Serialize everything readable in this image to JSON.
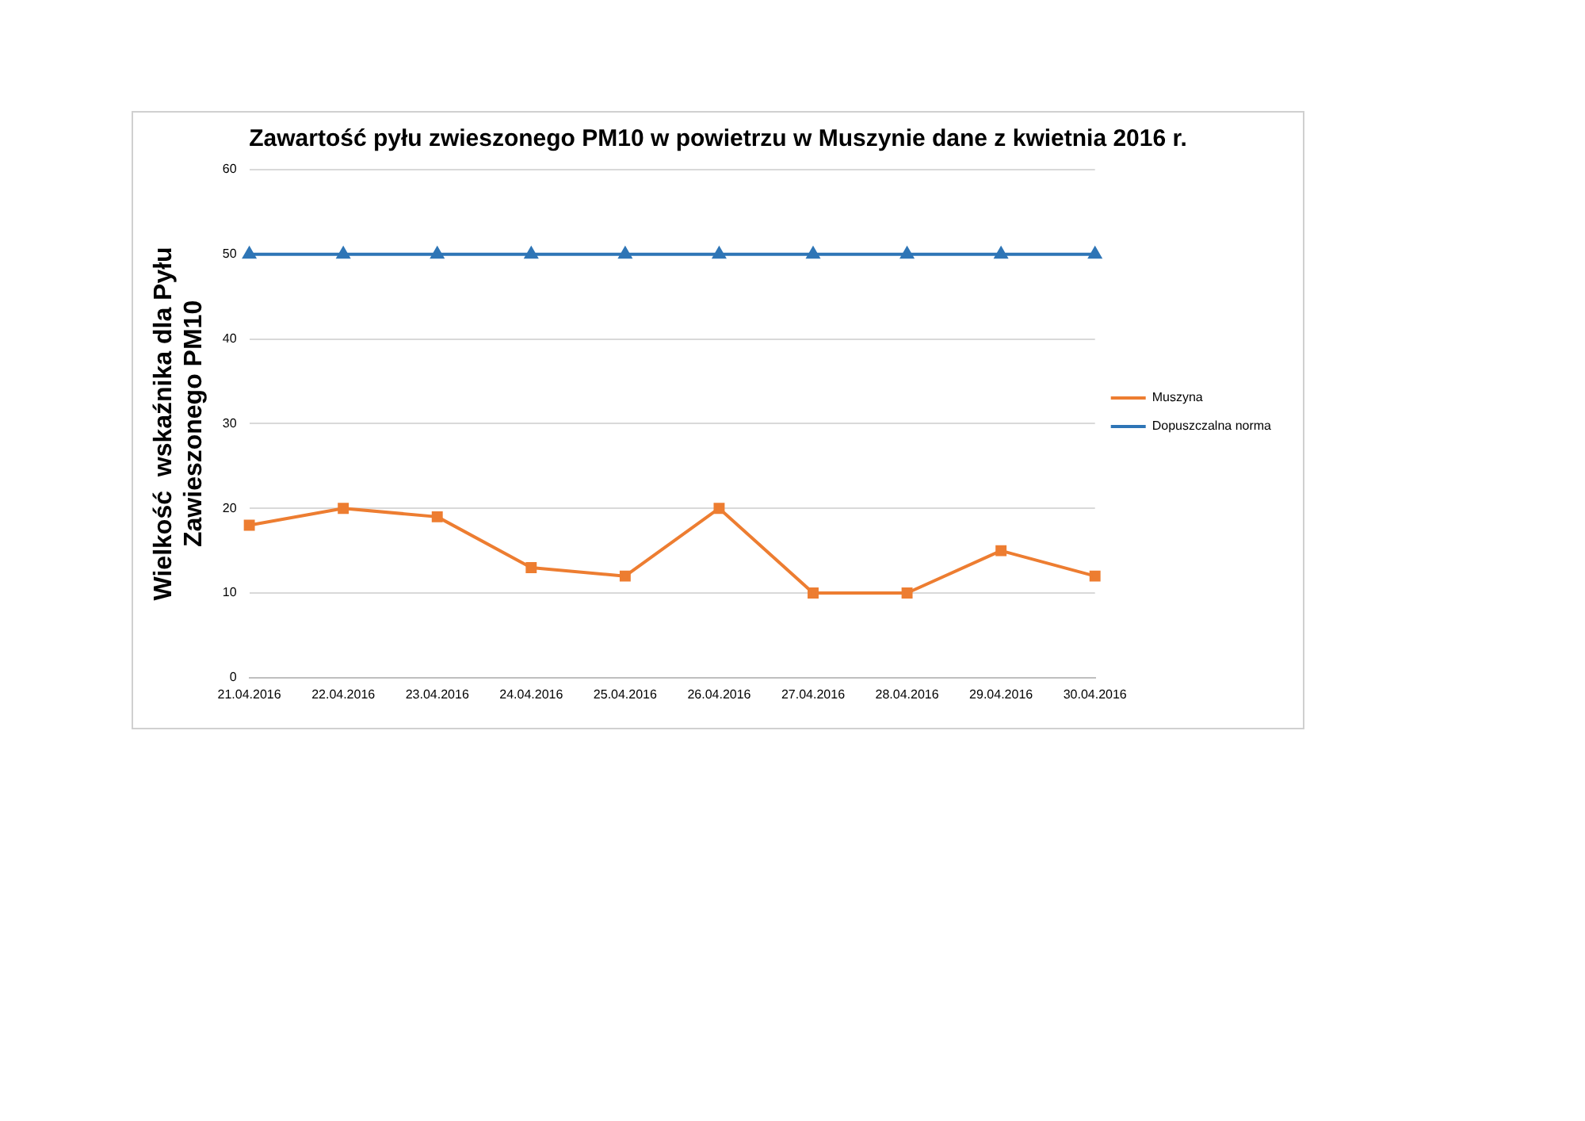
{
  "chart_data": {
    "type": "line",
    "title": "Zawartość pyłu zwieszonego PM10 w powietrzu w Muszynie dane z kwietnia 2016 r.",
    "ylabel": "Wielkość  wskaźnika dla Pyłu Zawieszonego PM10",
    "categories": [
      "21.04.2016",
      "22.04.2016",
      "23.04.2016",
      "24.04.2016",
      "25.04.2016",
      "26.04.2016",
      "27.04.2016",
      "28.04.2016",
      "29.04.2016",
      "30.04.2016"
    ],
    "series": [
      {
        "name": "Muszyna",
        "color": "#ed7d31",
        "marker": "square",
        "values": [
          18,
          20,
          19,
          13,
          12,
          20,
          10,
          10,
          15,
          12
        ]
      },
      {
        "name": "Dopuszczalna norma",
        "color": "#2e75b6",
        "marker": "triangle",
        "values": [
          50,
          50,
          50,
          50,
          50,
          50,
          50,
          50,
          50,
          50
        ]
      }
    ],
    "ylim": [
      0,
      60
    ],
    "yticks": [
      0,
      10,
      20,
      30,
      40,
      50,
      60
    ],
    "grid": "y",
    "legend": "right",
    "line_style": "solid"
  }
}
